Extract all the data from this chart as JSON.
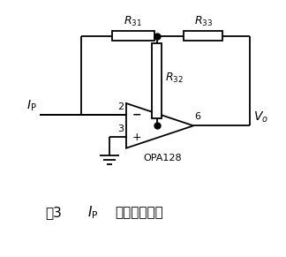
{
  "fig_width": 3.24,
  "fig_height": 2.91,
  "dpi": 100,
  "bg_color": "#ffffff",
  "line_color": "#000000",
  "line_width": 1.3,
  "op_amp_label": "OPA128",
  "pin2_label": "2",
  "pin3_label": "3",
  "pin6_label": "6",
  "minus_label": "−",
  "plus_label": "+",
  "Ip_label": "$I_\\mathrm{P}$",
  "Vo_label": "$V_o$",
  "R31_label": "$R_{31}$",
  "R32_label": "$R_{32}$",
  "R33_label": "$R_{33}$",
  "caption_fig": "图3",
  "caption_ip": "$I_\\mathrm{P}$",
  "caption_rest": "电流放大电路",
  "dot_size": 5,
  "title_fontsize": 11,
  "label_fontsize": 9,
  "pin_fontsize": 8,
  "caption_fontsize": 11
}
